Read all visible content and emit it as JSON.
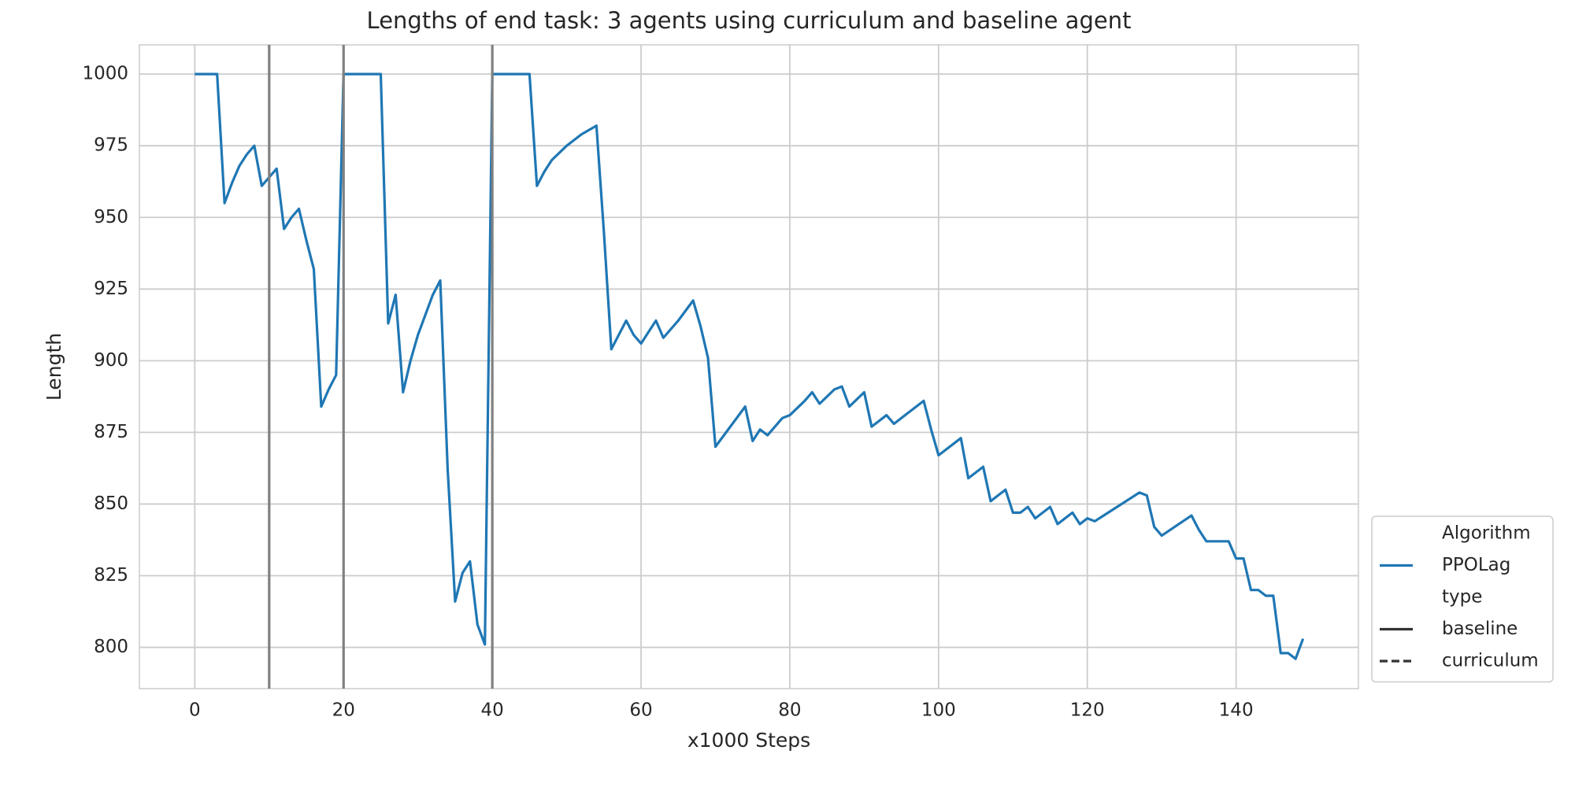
{
  "chart_data": {
    "type": "line",
    "title": "Lengths of end task: 3 agents using curriculum and baseline agent",
    "xlabel": "x1000 Steps",
    "ylabel": "Length",
    "x": [
      0,
      3,
      4,
      5,
      6,
      7,
      8,
      9,
      10,
      11,
      12,
      13,
      14,
      15,
      16,
      17,
      18,
      19,
      20,
      25,
      26,
      27,
      28,
      29,
      30,
      31,
      32,
      33,
      34,
      35,
      36,
      37,
      38,
      39,
      40,
      45,
      46,
      47,
      48,
      50,
      52,
      54,
      55,
      56,
      57,
      58,
      59,
      60,
      61,
      62,
      63,
      65,
      67,
      68,
      69,
      70,
      72,
      74,
      75,
      76,
      77,
      79,
      80,
      82,
      83,
      84,
      86,
      87,
      88,
      90,
      91,
      93,
      94,
      96,
      98,
      99,
      100,
      103,
      104,
      106,
      107,
      109,
      110,
      111,
      112,
      113,
      115,
      116,
      118,
      119,
      120,
      121,
      127,
      128,
      129,
      130,
      134,
      135,
      136,
      139,
      140,
      141,
      142,
      143,
      144,
      145,
      146,
      147,
      148,
      149
    ],
    "series": [
      {
        "name": "PPOLag",
        "color": "#1f77b4",
        "values": [
          1000,
          1000,
          955,
          962,
          968,
          972,
          975,
          961,
          964,
          967,
          946,
          950,
          953,
          942,
          932,
          884,
          890,
          895,
          1000,
          1000,
          913,
          923,
          889,
          900,
          909,
          916,
          923,
          928,
          862,
          816,
          826,
          830,
          808,
          801,
          1000,
          1000,
          961,
          966,
          970,
          975,
          979,
          982,
          945,
          904,
          909,
          914,
          909,
          906,
          910,
          914,
          908,
          914,
          921,
          912,
          901,
          870,
          877,
          884,
          872,
          876,
          874,
          880,
          881,
          886,
          889,
          885,
          890,
          891,
          884,
          889,
          877,
          881,
          878,
          882,
          886,
          876,
          867,
          873,
          859,
          863,
          851,
          855,
          847,
          847,
          849,
          845,
          849,
          843,
          847,
          843,
          845,
          844,
          854,
          853,
          842,
          839,
          846,
          841,
          837,
          837,
          831,
          831,
          820,
          820,
          818,
          818,
          798,
          798,
          796,
          803
        ]
      }
    ],
    "vlines": {
      "x": [
        10,
        20,
        40
      ],
      "color": "#808080"
    },
    "xlim": [
      -7.45,
      156.45
    ],
    "ylim": [
      785.6,
      1010.2
    ],
    "xticks": [
      0,
      20,
      40,
      60,
      80,
      100,
      120,
      140
    ],
    "yticks": [
      800,
      825,
      850,
      875,
      900,
      925,
      950,
      975,
      1000
    ],
    "grid": true,
    "legend": {
      "position": "outside right bottom",
      "hue_title": "Algorithm",
      "style_title": "type",
      "styles": [
        {
          "name": "baseline",
          "dash": "solid"
        },
        {
          "name": "curriculum",
          "dash": "dashed"
        }
      ]
    }
  }
}
